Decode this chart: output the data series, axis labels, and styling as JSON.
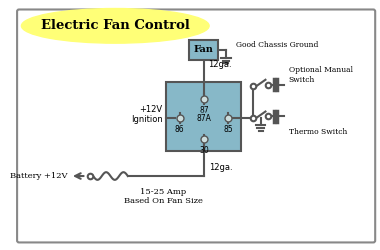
{
  "title": "Electric Fan Control",
  "title_color": "#000000",
  "title_bg": "#ffff77",
  "bg_color": "#ffffff",
  "border_color": "#888888",
  "relay_color": "#87b8c8",
  "relay_border": "#555555",
  "fan_box_color": "#87b8c8",
  "wire_color": "#555555",
  "text_color": "#000000",
  "label_fan": "Fan",
  "label_87": "87",
  "label_87a": "87A",
  "label_86": "86",
  "label_85": "85",
  "label_30": "30",
  "label_12ga_top": "12ga.",
  "label_12ga_bot": "12ga.",
  "label_ignition": "+12V\nIgnition",
  "label_battery": "Battery +12V",
  "label_fuse": "15-25 Amp\nBased On Fan Size",
  "label_ground": "Good Chassis Ground",
  "label_manual": "Optional Manual\nSwitch",
  "label_thermo": "Thermo Switch"
}
